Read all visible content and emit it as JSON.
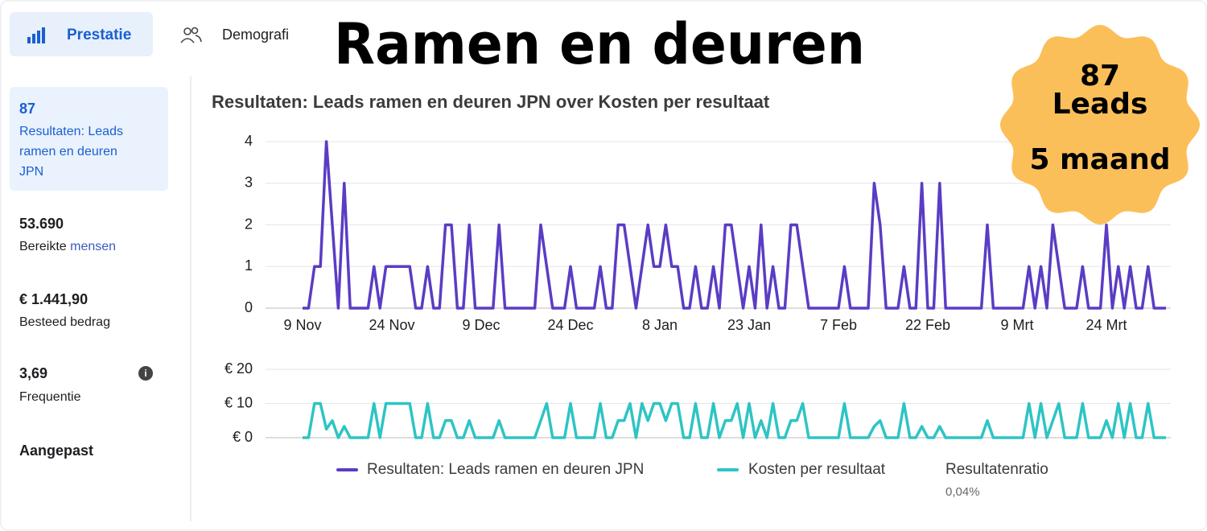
{
  "tabs": [
    "Prestatie",
    "Demografi"
  ],
  "overlay": {
    "title": "Ramen en deuren",
    "badge": [
      "87",
      "Leads",
      "5 maand"
    ]
  },
  "metrics": [
    {
      "value": "87",
      "label": "Resultaten: Leads ramen en deuren JPN"
    },
    {
      "value": "53.690",
      "label": "Bereikte",
      "link": "mensen"
    },
    {
      "value": "€ 1.441,90",
      "label": "Besteed bedrag"
    },
    {
      "value": "3,69",
      "label": "Frequentie"
    }
  ],
  "custom": "Aangepast",
  "legend_extra": {
    "label": "Resultatenratio",
    "value": "0,04%"
  },
  "chart_data": [
    {
      "type": "line",
      "title": "Resultaten: Leads ramen en deuren JPN over Kosten per resultaat",
      "categories": [
        "9 Nov",
        null,
        null,
        null,
        null,
        null,
        null,
        null,
        null,
        null,
        null,
        null,
        null,
        null,
        null,
        "24 Nov",
        null,
        null,
        null,
        null,
        null,
        null,
        null,
        null,
        null,
        null,
        null,
        null,
        null,
        null,
        "9 Dec",
        null,
        null,
        null,
        null,
        null,
        null,
        null,
        null,
        null,
        null,
        null,
        null,
        null,
        null,
        "24 Dec",
        null,
        null,
        null,
        null,
        null,
        null,
        null,
        null,
        null,
        null,
        null,
        null,
        null,
        null,
        "8 Jan",
        null,
        null,
        null,
        null,
        null,
        null,
        null,
        null,
        null,
        null,
        null,
        null,
        null,
        null,
        "23 Jan",
        null,
        null,
        null,
        null,
        null,
        null,
        null,
        null,
        null,
        null,
        null,
        null,
        null,
        null,
        "7 Feb",
        null,
        null,
        null,
        null,
        null,
        null,
        null,
        null,
        null,
        null,
        null,
        null,
        null,
        null,
        "22 Feb",
        null,
        null,
        null,
        null,
        null,
        null,
        null,
        null,
        null,
        null,
        null,
        null,
        null,
        null,
        "9 Mrt",
        null,
        null,
        null,
        null,
        null,
        null,
        null,
        null,
        null,
        null,
        null,
        null,
        null,
        null,
        "24 Mrt",
        null,
        null,
        null,
        null,
        null,
        null,
        null,
        null,
        null,
        null
      ],
      "series": [
        {
          "name": "Resultaten: Leads ramen en deuren JPN",
          "color": "#5b3cc4",
          "values": [
            0,
            0,
            1,
            1,
            4,
            2,
            0,
            3,
            0,
            0,
            0,
            0,
            1,
            0,
            1,
            1,
            1,
            1,
            1,
            0,
            0,
            1,
            0,
            0,
            2,
            2,
            0,
            0,
            2,
            0,
            0,
            0,
            0,
            2,
            0,
            0,
            0,
            0,
            0,
            0,
            2,
            1,
            0,
            0,
            0,
            1,
            0,
            0,
            0,
            0,
            1,
            0,
            0,
            2,
            2,
            1,
            0,
            1,
            2,
            1,
            1,
            2,
            1,
            1,
            0,
            0,
            1,
            0,
            0,
            1,
            0,
            2,
            2,
            1,
            0,
            1,
            0,
            2,
            0,
            1,
            0,
            0,
            2,
            2,
            1,
            0,
            0,
            0,
            0,
            0,
            0,
            1,
            0,
            0,
            0,
            0,
            3,
            2,
            0,
            0,
            0,
            1,
            0,
            0,
            3,
            0,
            0,
            3,
            0,
            0,
            0,
            0,
            0,
            0,
            0,
            2,
            0,
            0,
            0,
            0,
            0,
            0,
            1,
            0,
            1,
            0,
            2,
            1,
            0,
            0,
            0,
            1,
            0,
            0,
            0,
            2,
            0,
            1,
            0,
            1,
            0,
            0,
            1,
            0,
            0,
            0
          ]
        }
      ],
      "ylim": [
        0,
        4
      ],
      "yticks": [
        0,
        1,
        2,
        3,
        4
      ],
      "grid": true
    },
    {
      "type": "line",
      "series": [
        {
          "name": "Kosten per resultaat",
          "color": "#2ec4c4",
          "values": [
            0,
            0,
            10,
            10,
            2.5,
            5,
            0,
            3.3,
            0,
            0,
            0,
            0,
            10,
            0,
            10,
            10,
            10,
            10,
            10,
            0,
            0,
            10,
            0,
            0,
            5,
            5,
            0,
            0,
            5,
            0,
            0,
            0,
            0,
            5,
            0,
            0,
            0,
            0,
            0,
            0,
            5,
            10,
            0,
            0,
            0,
            10,
            0,
            0,
            0,
            0,
            10,
            0,
            0,
            5,
            5,
            10,
            0,
            10,
            5,
            10,
            10,
            5,
            10,
            10,
            0,
            0,
            10,
            0,
            0,
            10,
            0,
            5,
            5,
            10,
            0,
            10,
            0,
            5,
            0,
            10,
            0,
            0,
            5,
            5,
            10,
            0,
            0,
            0,
            0,
            0,
            0,
            10,
            0,
            0,
            0,
            0,
            3.3,
            5,
            0,
            0,
            0,
            10,
            0,
            0,
            3.3,
            0,
            0,
            3.3,
            0,
            0,
            0,
            0,
            0,
            0,
            0,
            5,
            0,
            0,
            0,
            0,
            0,
            0,
            10,
            0,
            10,
            0,
            5,
            10,
            0,
            0,
            0,
            10,
            0,
            0,
            0,
            5,
            0,
            10,
            0,
            10,
            0,
            0,
            10,
            0,
            0,
            0
          ]
        }
      ],
      "ylim": [
        0,
        20
      ],
      "yticks": [
        {
          "value": 0,
          "label": "€ 0"
        },
        {
          "value": 10,
          "label": "€ 10"
        },
        {
          "value": 20,
          "label": "€ 20"
        }
      ],
      "grid": true
    }
  ]
}
